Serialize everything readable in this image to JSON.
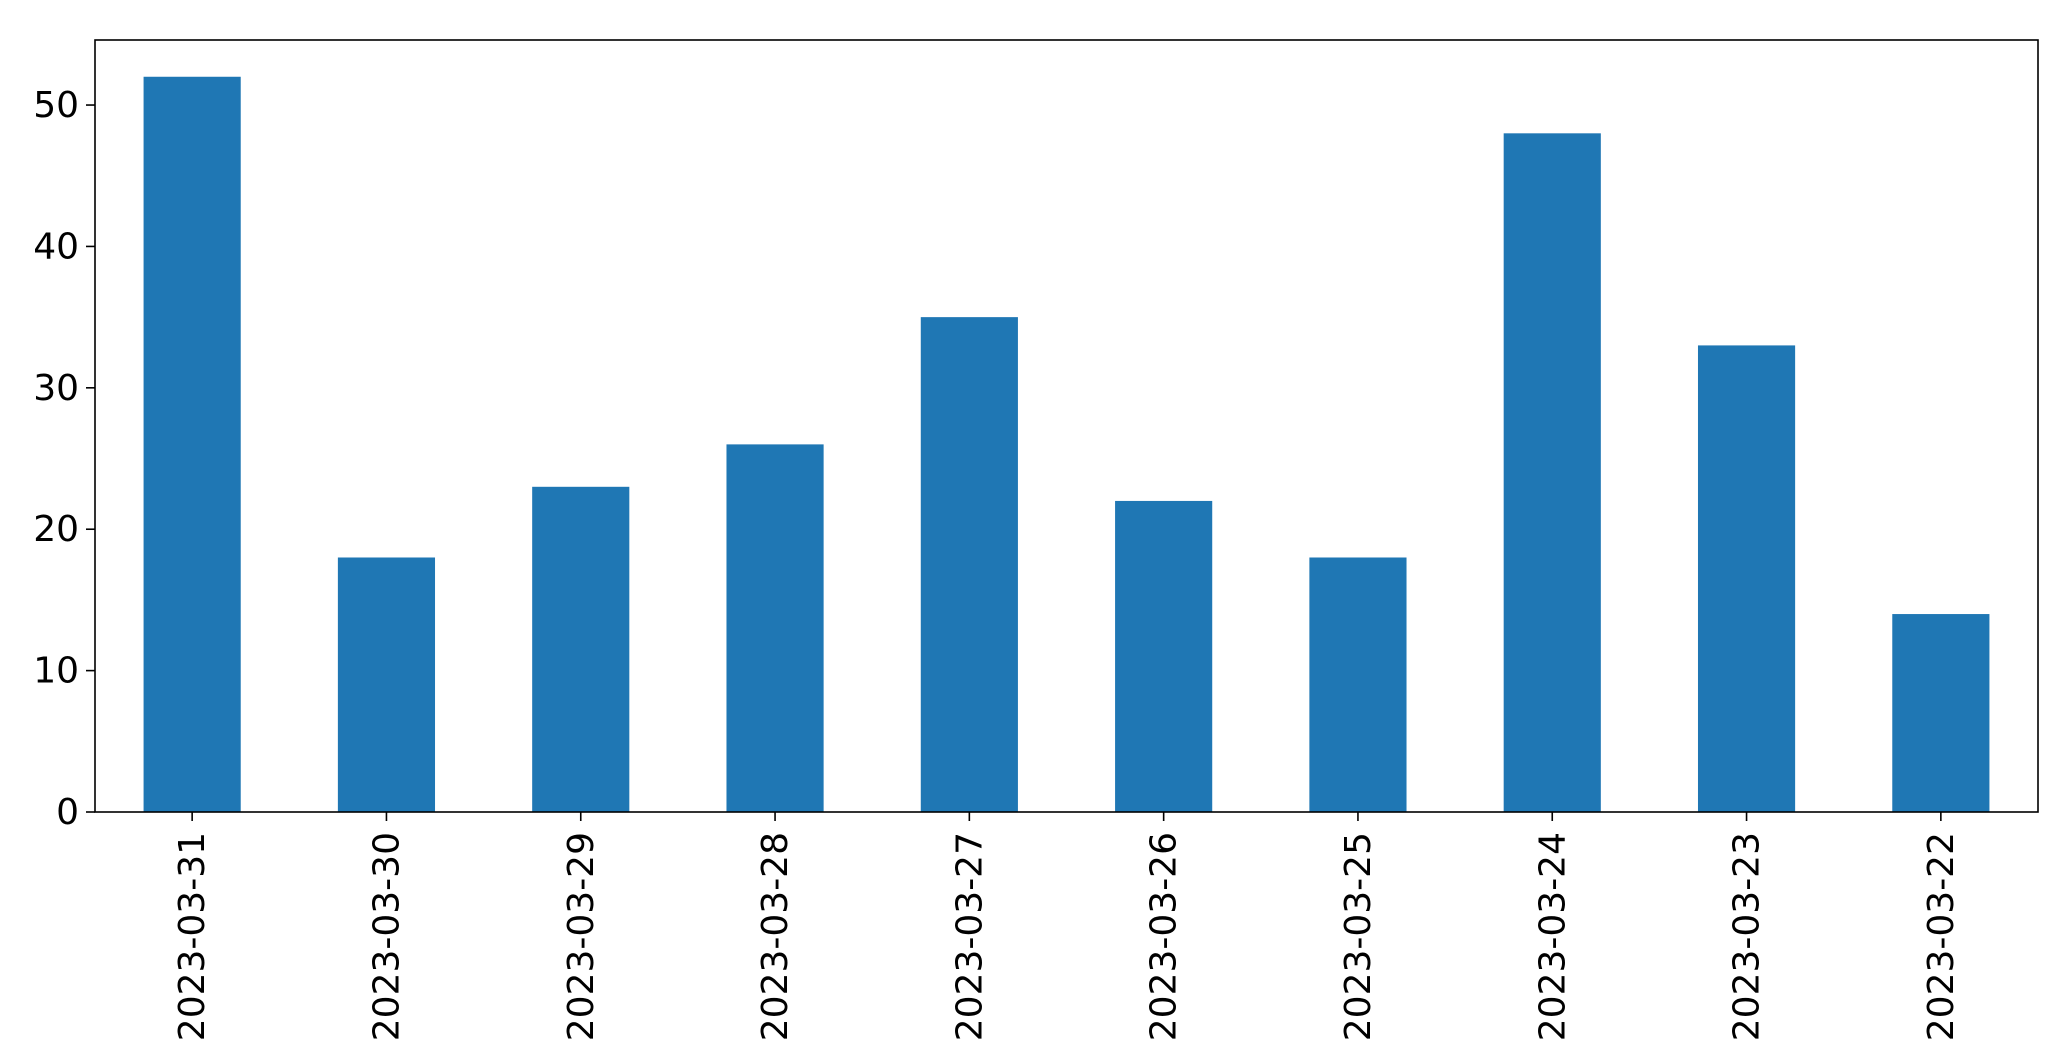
{
  "chart_data": {
    "type": "bar",
    "categories": [
      "2023-03-31",
      "2023-03-30",
      "2023-03-29",
      "2023-03-28",
      "2023-03-27",
      "2023-03-26",
      "2023-03-25",
      "2023-03-24",
      "2023-03-23",
      "2023-03-22"
    ],
    "values": [
      52,
      18,
      23,
      26,
      35,
      22,
      18,
      48,
      33,
      14
    ],
    "title": "",
    "xlabel": "",
    "ylabel": "",
    "ylim": [
      0,
      54.6
    ],
    "yticks": [
      0,
      10,
      20,
      30,
      40,
      50
    ],
    "bar_color": "#1f77b4",
    "grid": false,
    "legend": false
  }
}
